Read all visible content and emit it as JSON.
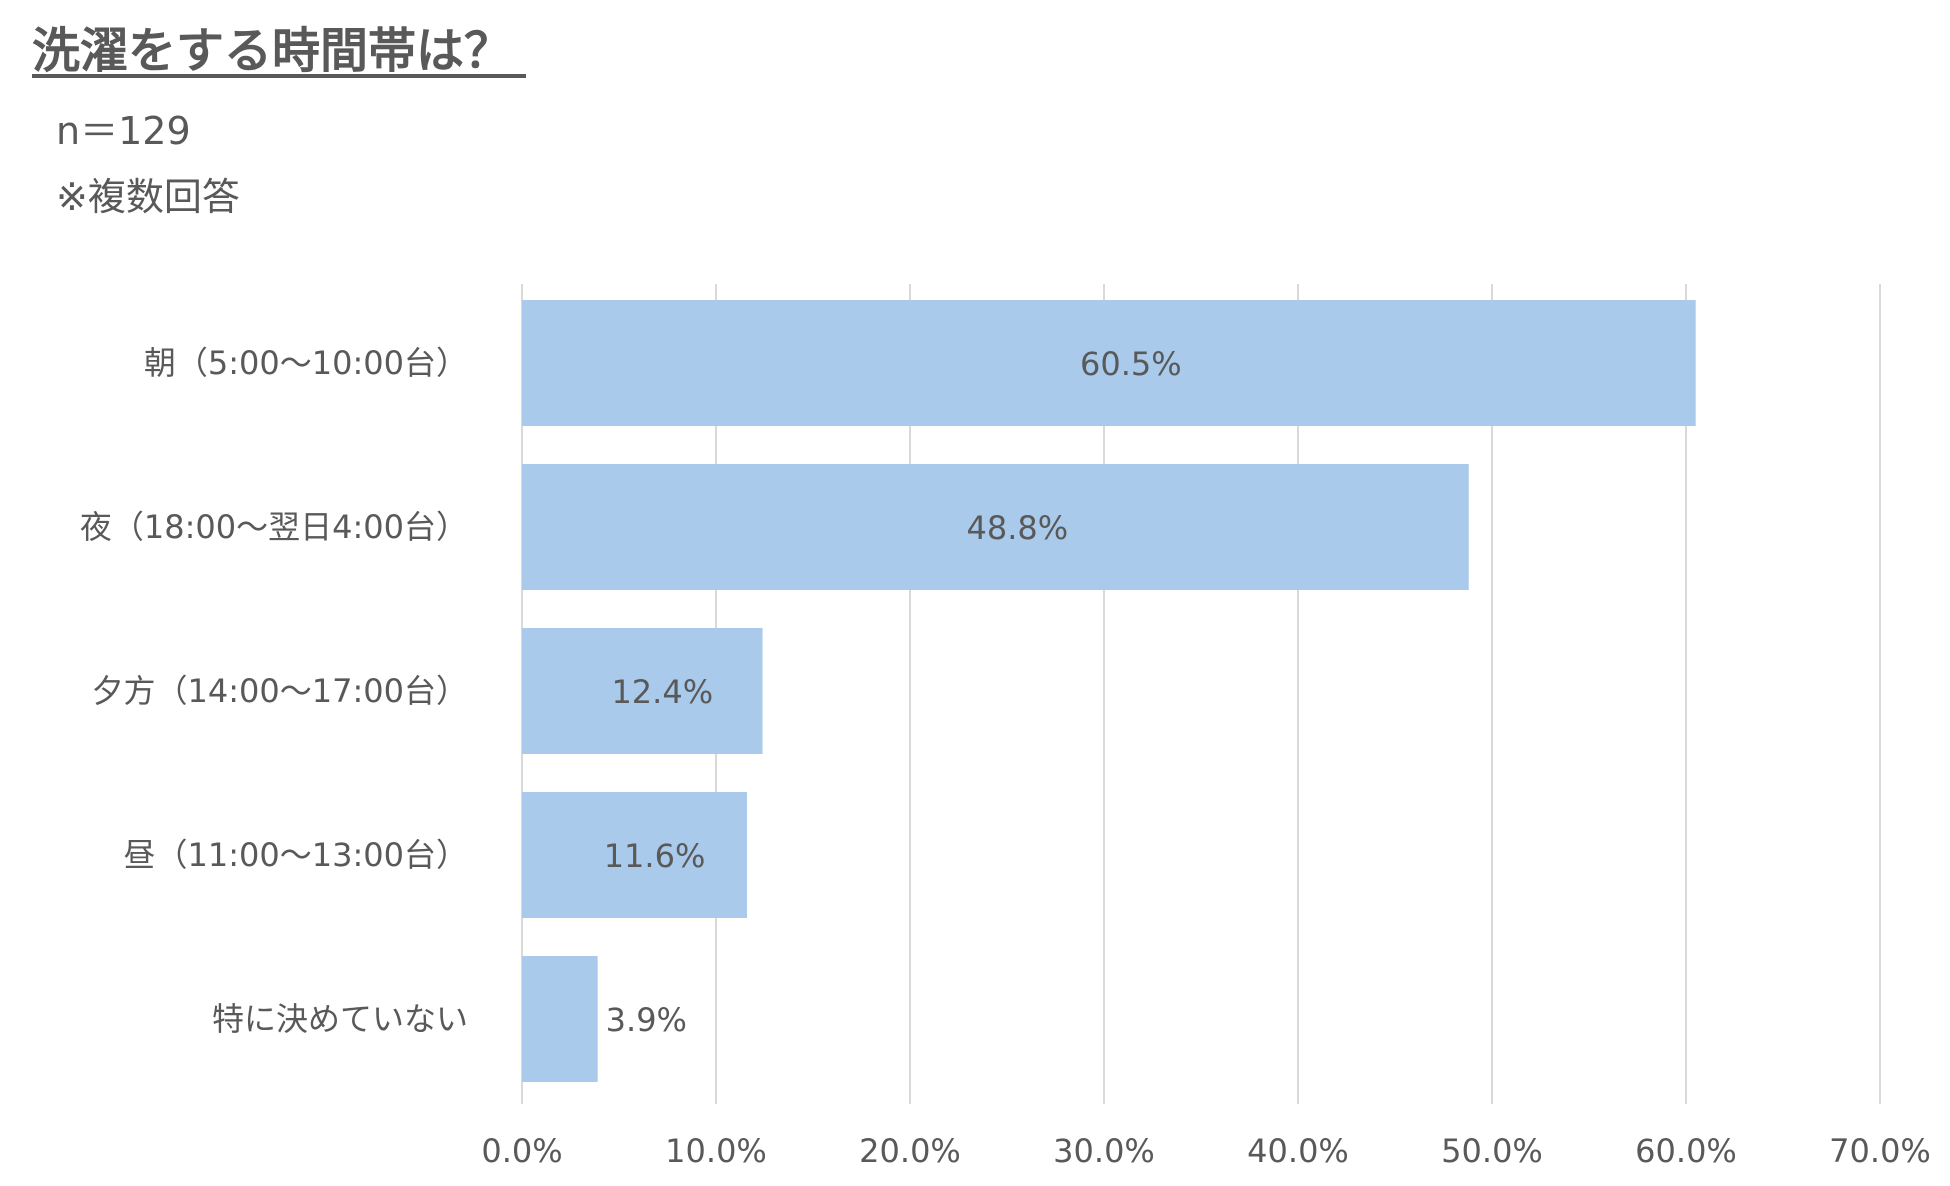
{
  "title": "洗濯をする時間帯は？",
  "sample_size": "n＝129",
  "note": "※複数回答",
  "chart_data": {
    "type": "bar",
    "orientation": "horizontal",
    "categories": [
      "朝（5:00～10:00台）",
      "夜（18:00～翌日4:00台）",
      "夕方（14:00～17:00台）",
      "昼（11:00～13:00台）",
      "特に決めていない"
    ],
    "values": [
      60.5,
      48.8,
      12.4,
      11.6,
      3.9
    ],
    "value_labels": [
      "60.5%",
      "48.8%",
      "12.4%",
      "11.6%",
      "3.9%"
    ],
    "xlim": [
      0,
      70
    ],
    "x_ticks": [
      0,
      10,
      20,
      30,
      40,
      50,
      60,
      70
    ],
    "x_tick_labels": [
      "0.0%",
      "10.0%",
      "20.0%",
      "30.0%",
      "40.0%",
      "50.0%",
      "60.0%",
      "70.0%"
    ],
    "grid": true,
    "bar_color": "#A9CAEB",
    "grid_color": "#D9D9D9",
    "text_color": "#595959"
  }
}
